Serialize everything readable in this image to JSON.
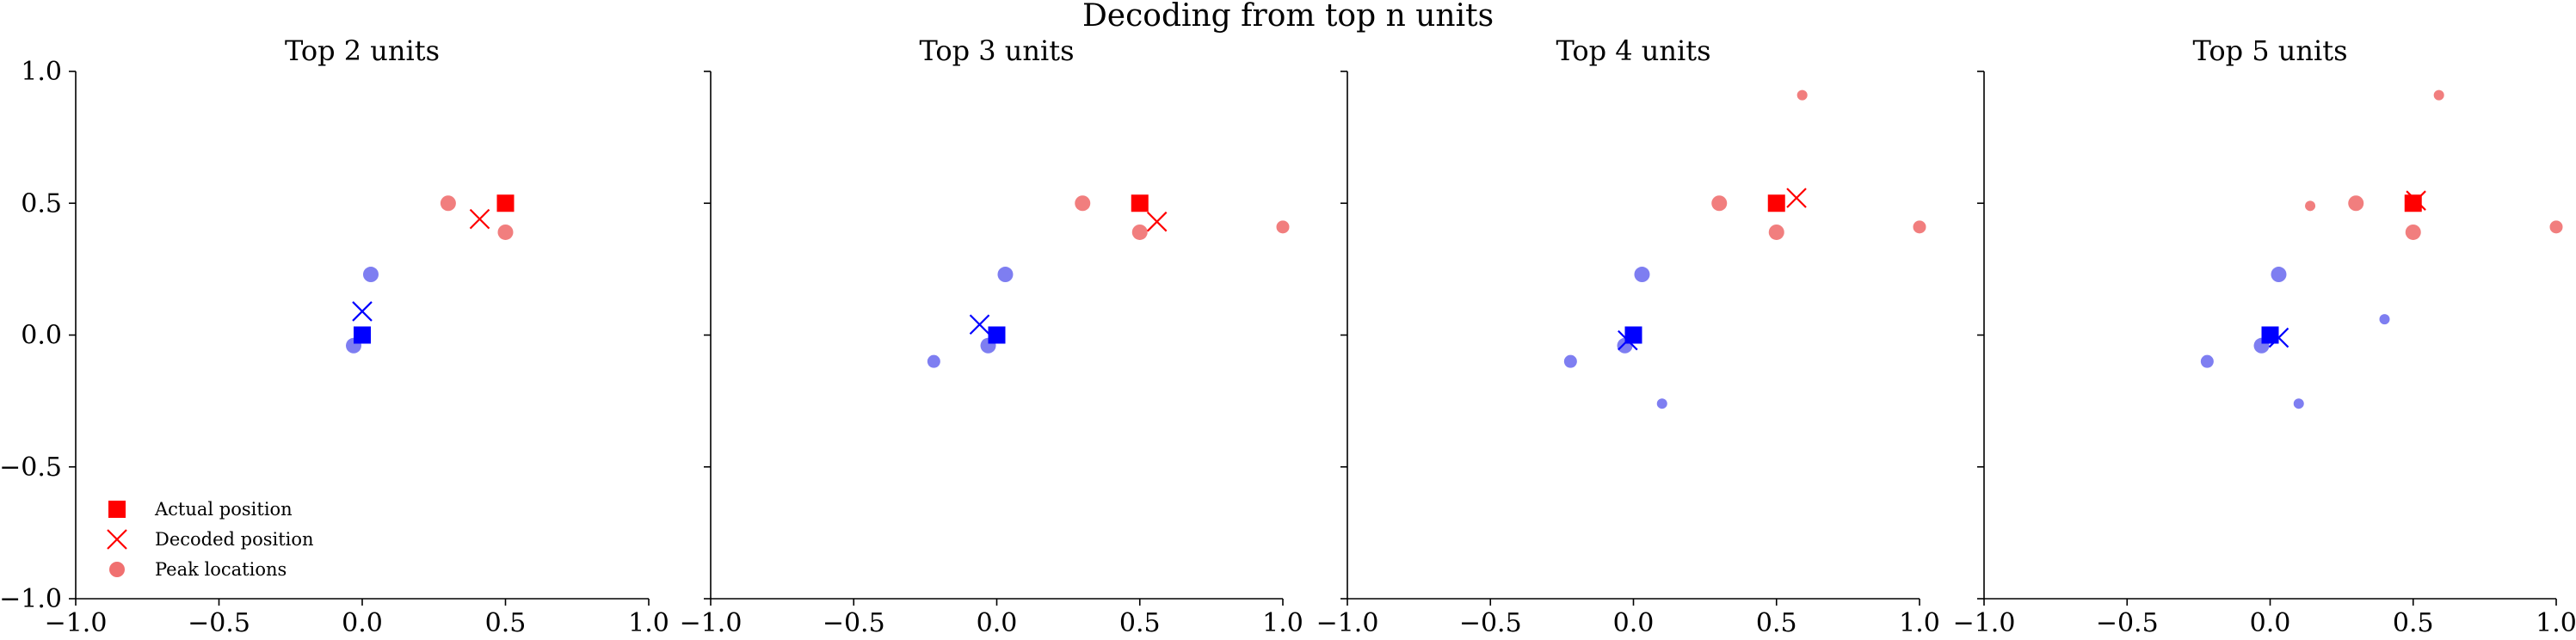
{
  "figure": {
    "suptitle": "Decoding from top n units"
  },
  "colors": {
    "red": "#ff0000",
    "blue": "#0000ff",
    "red_peak": "#f07070",
    "blue_peak": "#7070f0",
    "axis": "#000000"
  },
  "legend": {
    "placement": "lower-left of first panel",
    "entries": [
      {
        "label": "Actual position",
        "marker": "square"
      },
      {
        "label": "Decoded position",
        "marker": "x"
      },
      {
        "label": "Peak locations",
        "marker": "circle"
      }
    ]
  },
  "chart_data": [
    {
      "type": "scatter",
      "title": "Top 2 units",
      "xlim": [
        -1.0,
        1.0
      ],
      "ylim": [
        -1.0,
        1.0
      ],
      "xticks": [
        "−1.0",
        "−0.5",
        "0.0",
        "0.5",
        "1.0"
      ],
      "yticks": [
        "−1.0",
        "−0.5",
        "0.0",
        "0.5",
        "1.0"
      ],
      "actual": [
        {
          "color": "red",
          "x": 0.5,
          "y": 0.5
        },
        {
          "color": "blue",
          "x": 0.0,
          "y": 0.0
        }
      ],
      "decoded": [
        {
          "color": "red",
          "x": 0.41,
          "y": 0.44
        },
        {
          "color": "blue",
          "x": 0.0,
          "y": 0.09
        }
      ],
      "peaks": [
        {
          "color": "red",
          "x": 0.3,
          "y": 0.5,
          "size": "large"
        },
        {
          "color": "red",
          "x": 0.5,
          "y": 0.39,
          "size": "large"
        },
        {
          "color": "blue",
          "x": 0.03,
          "y": 0.23,
          "size": "large"
        },
        {
          "color": "blue",
          "x": -0.03,
          "y": -0.04,
          "size": "large"
        }
      ]
    },
    {
      "type": "scatter",
      "title": "Top 3 units",
      "xlim": [
        -1.0,
        1.0
      ],
      "ylim": [
        -1.0,
        1.0
      ],
      "xticks": [
        "−1.0",
        "−0.5",
        "0.0",
        "0.5",
        "1.0"
      ],
      "yticks": [],
      "actual": [
        {
          "color": "red",
          "x": 0.5,
          "y": 0.5
        },
        {
          "color": "blue",
          "x": 0.0,
          "y": 0.0
        }
      ],
      "decoded": [
        {
          "color": "red",
          "x": 0.56,
          "y": 0.43
        },
        {
          "color": "blue",
          "x": -0.06,
          "y": 0.04
        }
      ],
      "peaks": [
        {
          "color": "red",
          "x": 0.3,
          "y": 0.5,
          "size": "large"
        },
        {
          "color": "red",
          "x": 0.5,
          "y": 0.39,
          "size": "large"
        },
        {
          "color": "red",
          "x": 1.0,
          "y": 0.41,
          "size": "medium"
        },
        {
          "color": "blue",
          "x": 0.03,
          "y": 0.23,
          "size": "large"
        },
        {
          "color": "blue",
          "x": -0.03,
          "y": -0.04,
          "size": "large"
        },
        {
          "color": "blue",
          "x": -0.22,
          "y": -0.1,
          "size": "medium"
        }
      ]
    },
    {
      "type": "scatter",
      "title": "Top 4 units",
      "xlim": [
        -1.0,
        1.0
      ],
      "ylim": [
        -1.0,
        1.0
      ],
      "xticks": [
        "−1.0",
        "−0.5",
        "0.0",
        "0.5",
        "1.0"
      ],
      "yticks": [],
      "actual": [
        {
          "color": "red",
          "x": 0.5,
          "y": 0.5
        },
        {
          "color": "blue",
          "x": 0.0,
          "y": 0.0
        }
      ],
      "decoded": [
        {
          "color": "red",
          "x": 0.57,
          "y": 0.52
        },
        {
          "color": "blue",
          "x": -0.02,
          "y": -0.02
        }
      ],
      "peaks": [
        {
          "color": "red",
          "x": 0.3,
          "y": 0.5,
          "size": "large"
        },
        {
          "color": "red",
          "x": 0.5,
          "y": 0.39,
          "size": "large"
        },
        {
          "color": "red",
          "x": 1.0,
          "y": 0.41,
          "size": "medium"
        },
        {
          "color": "red",
          "x": 0.59,
          "y": 0.91,
          "size": "small"
        },
        {
          "color": "blue",
          "x": 0.03,
          "y": 0.23,
          "size": "large"
        },
        {
          "color": "blue",
          "x": -0.03,
          "y": -0.04,
          "size": "large"
        },
        {
          "color": "blue",
          "x": -0.22,
          "y": -0.1,
          "size": "medium"
        },
        {
          "color": "blue",
          "x": 0.1,
          "y": -0.26,
          "size": "small"
        }
      ]
    },
    {
      "type": "scatter",
      "title": "Top 5 units",
      "xlim": [
        -1.0,
        1.0
      ],
      "ylim": [
        -1.0,
        1.0
      ],
      "xticks": [
        "−1.0",
        "−0.5",
        "0.0",
        "0.5",
        "1.0"
      ],
      "yticks": [],
      "actual": [
        {
          "color": "red",
          "x": 0.5,
          "y": 0.5
        },
        {
          "color": "blue",
          "x": 0.0,
          "y": 0.0
        }
      ],
      "decoded": [
        {
          "color": "red",
          "x": 0.51,
          "y": 0.51
        },
        {
          "color": "blue",
          "x": 0.03,
          "y": -0.01
        }
      ],
      "peaks": [
        {
          "color": "red",
          "x": 0.3,
          "y": 0.5,
          "size": "large"
        },
        {
          "color": "red",
          "x": 0.5,
          "y": 0.39,
          "size": "large"
        },
        {
          "color": "red",
          "x": 1.0,
          "y": 0.41,
          "size": "medium"
        },
        {
          "color": "red",
          "x": 0.59,
          "y": 0.91,
          "size": "small"
        },
        {
          "color": "red",
          "x": 0.14,
          "y": 0.49,
          "size": "small"
        },
        {
          "color": "blue",
          "x": 0.03,
          "y": 0.23,
          "size": "large"
        },
        {
          "color": "blue",
          "x": -0.03,
          "y": -0.04,
          "size": "large"
        },
        {
          "color": "blue",
          "x": -0.22,
          "y": -0.1,
          "size": "medium"
        },
        {
          "color": "blue",
          "x": 0.1,
          "y": -0.26,
          "size": "small"
        },
        {
          "color": "blue",
          "x": 0.4,
          "y": 0.06,
          "size": "small"
        }
      ]
    }
  ]
}
